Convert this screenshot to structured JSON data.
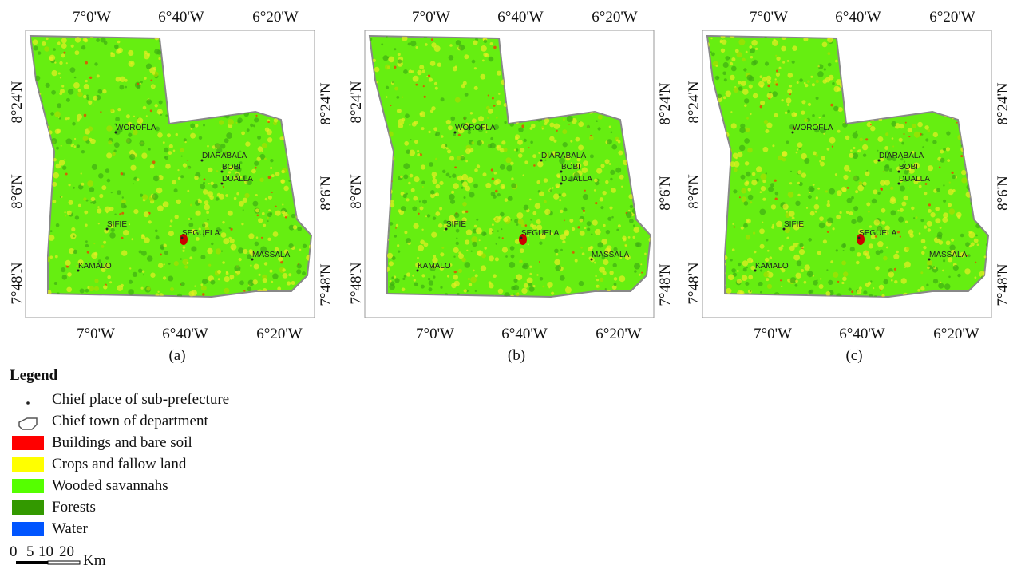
{
  "panels": [
    {
      "caption": "(a)",
      "top_labels": [
        "7°0'W",
        "6°40'W",
        "6°20'W"
      ],
      "bottom_labels": [
        "7°0'W",
        "6°40'W",
        "6°20'W"
      ],
      "left_labels": [
        "8°24'N",
        "8°6'N",
        "7°48'N"
      ],
      "right_labels": [
        "8°24'N",
        "8°6'N",
        "7°48'N"
      ],
      "places": [
        "WOROFLA",
        "DIARABALA",
        "BOBI",
        "DUALLA",
        "SIFIE",
        "SEGUELA",
        "MASSALA",
        "KAMALO"
      ]
    },
    {
      "caption": "(b)",
      "top_labels": [
        "7°0'W",
        "6°40'W",
        "6°20'W"
      ],
      "bottom_labels": [
        "7°0'W",
        "6°40'W",
        "6°20'W"
      ],
      "left_labels": [
        "8°24'N",
        "8°6'N",
        "7°48'N"
      ],
      "right_labels": [
        "8°24'N",
        "8°6'N",
        "7°48'N"
      ],
      "places": [
        "WOROFLA",
        "DIARABALA",
        "BOBI",
        "DUALLA",
        "SIFIE",
        "SEGUELA",
        "MASSALA",
        "KAMALO"
      ]
    },
    {
      "caption": "(c)",
      "top_labels": [
        "7°0'W",
        "6°40'W",
        "6°20'W"
      ],
      "bottom_labels": [
        "7°0'W",
        "6°40'W",
        "6°20'W"
      ],
      "left_labels": [
        "8°24'N",
        "8°6'N",
        "7°48'N"
      ],
      "right_labels": [
        "8°24'N",
        "8°6'N",
        "7°48'N"
      ],
      "places": [
        "WOROFLA",
        "DIARABALA",
        "BOBI",
        "DUALLA",
        "SIFIE",
        "SEGUELA",
        "MASSALA",
        "KAMALO"
      ]
    }
  ],
  "legend": {
    "title": "Legend",
    "items": [
      {
        "label": "Chief place of sub-prefecture"
      },
      {
        "label": "Chief town of department"
      },
      {
        "label": "Buildings and bare soil",
        "color": "#ff0000"
      },
      {
        "label": "Crops and fallow land",
        "color": "#ffff00"
      },
      {
        "label": "Wooded savannahs",
        "color": "#55ff00"
      },
      {
        "label": "Forests",
        "color": "#339900"
      },
      {
        "label": "Water",
        "color": "#0055ff"
      }
    ]
  },
  "scale": {
    "labels": [
      "0",
      "5",
      "10",
      "20"
    ],
    "unit": "Km"
  }
}
